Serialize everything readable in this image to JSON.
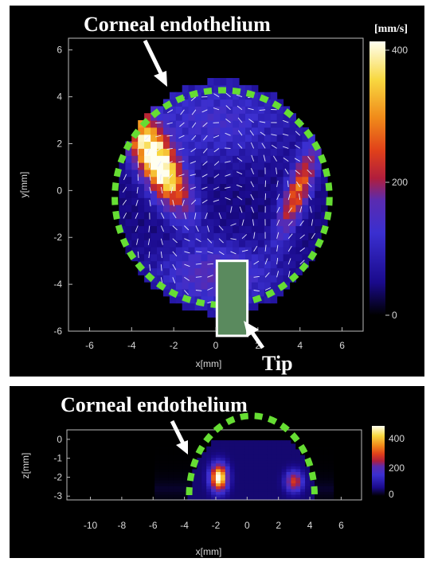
{
  "colors": {
    "background": "#000000",
    "boundary": "#66dd33",
    "tip": "#5a8a5e",
    "colormap": [
      "#000000",
      "#1a0a8c",
      "#3a2fd0",
      "#5a2bb0",
      "#b01e3c",
      "#e0401a",
      "#f08a1a",
      "#f8d840",
      "#fffff0"
    ]
  },
  "chart_data": [
    {
      "type": "heatmap",
      "plane": "x-y",
      "xlabel": "x[mm]",
      "ylabel": "y[mm]",
      "xlim": [
        -7,
        7
      ],
      "ylim": [
        -6,
        6.5
      ],
      "xticks": [
        "-6",
        "-4",
        "-2",
        "0",
        "2",
        "4",
        "6"
      ],
      "yticks": [
        "6",
        "4",
        "2",
        "0",
        "-2",
        "-4",
        "-6"
      ],
      "colorbar": {
        "unit": "[mm/s]",
        "ticks": [
          "400",
          "200",
          "0"
        ],
        "range": [
          0,
          400
        ]
      },
      "annotations": {
        "label": "Corneal endothelium",
        "tip_label": "Tip"
      },
      "boundary_circle": {
        "center": [
          0.3,
          -0.3
        ],
        "radius": 5.1
      },
      "tip_rect": {
        "x": [
          0.05,
          1.5
        ],
        "y": [
          -6.2,
          -3.0
        ]
      },
      "hotspots": [
        {
          "x": -2.8,
          "y": 1.3,
          "peak": 410,
          "sx": 0.55,
          "sy": 1.5,
          "rot": 0.55
        },
        {
          "x": 3.9,
          "y": 0.0,
          "peak": 220,
          "sx": 0.35,
          "sy": 1.3,
          "rot": -0.4
        },
        {
          "x": 0.0,
          "y": 3.0,
          "peak": 60,
          "sx": 2.5,
          "sy": 1.2,
          "rot": 0.0
        },
        {
          "x": 0.0,
          "y": -3.6,
          "peak": 90,
          "sx": 1.8,
          "sy": 0.9,
          "rot": 0.0
        }
      ],
      "background_speed": 45
    },
    {
      "type": "heatmap",
      "plane": "x-z",
      "xlabel": "x[mm]",
      "ylabel": "z[mm]",
      "xlim": [
        -11.5,
        7.3
      ],
      "ylim": [
        -3.2,
        0.5
      ],
      "xticks": [
        "-10",
        "-8",
        "-6",
        "-4",
        "-2",
        "0",
        "2",
        "4",
        "6"
      ],
      "yticks": [
        "0",
        "-1",
        "-2",
        "-3"
      ],
      "colorbar": {
        "ticks": [
          "400",
          "200",
          "0"
        ],
        "range": [
          0,
          400
        ]
      },
      "annotations": {
        "label": "Corneal endothelium"
      },
      "boundary_arc": {
        "center": [
          0.3,
          -3.2
        ],
        "radius": 4.0
      },
      "hotspots": [
        {
          "x": -1.8,
          "y": -2.0,
          "peak": 390,
          "sx": 0.35,
          "sy": 0.45,
          "rot": 0
        },
        {
          "x": 3.0,
          "y": -2.2,
          "peak": 200,
          "sx": 0.35,
          "sy": 0.35,
          "rot": 0
        }
      ],
      "background_speed": 40
    }
  ]
}
